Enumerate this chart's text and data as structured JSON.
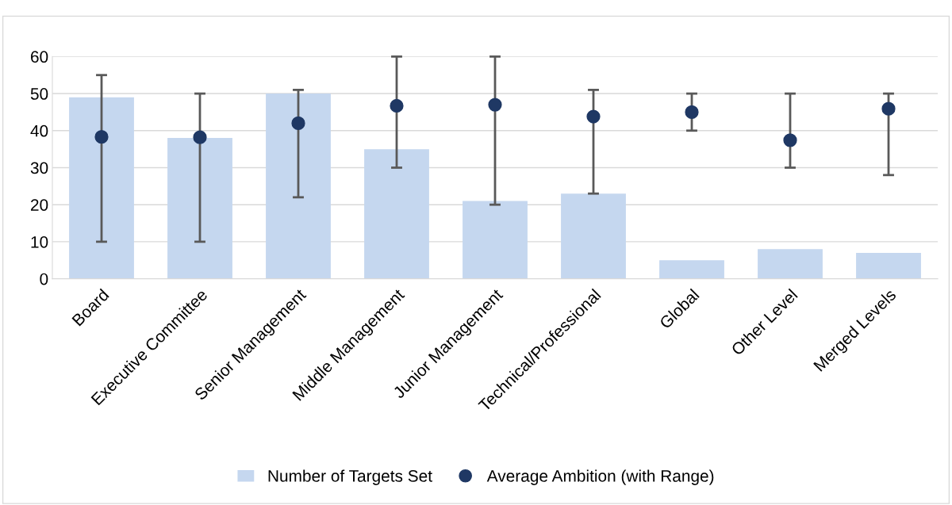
{
  "chart_data": {
    "type": "bar",
    "categories": [
      "Board",
      "Executive Committee",
      "Senior Management",
      "Middle Management",
      "Junior Management",
      "Technical/Professional",
      "Global",
      "Other Level",
      "Merged Levels"
    ],
    "series": [
      {
        "name": "Number of Targets Set",
        "color": "#c5d7ef",
        "values": [
          49,
          38,
          50,
          35,
          21,
          23,
          5,
          8,
          7
        ]
      },
      {
        "name": "Average Ambition (with Range)",
        "type": "scatter",
        "color": "#1f3864",
        "marker": "circle",
        "values": [
          38.3,
          38.2,
          42,
          46.7,
          47,
          43.8,
          45,
          37.4,
          45.9
        ],
        "errors": [
          [
            10,
            55
          ],
          [
            10,
            50
          ],
          [
            22,
            51
          ],
          [
            30,
            60
          ],
          [
            20,
            60
          ],
          [
            23,
            51
          ],
          [
            40,
            50
          ],
          [
            30,
            50
          ],
          [
            28,
            50
          ]
        ]
      }
    ],
    "ylim": [
      0,
      60
    ],
    "yticks": [
      0,
      10,
      20,
      30,
      40,
      50,
      60
    ],
    "grid": "y",
    "legend": "bottom"
  }
}
